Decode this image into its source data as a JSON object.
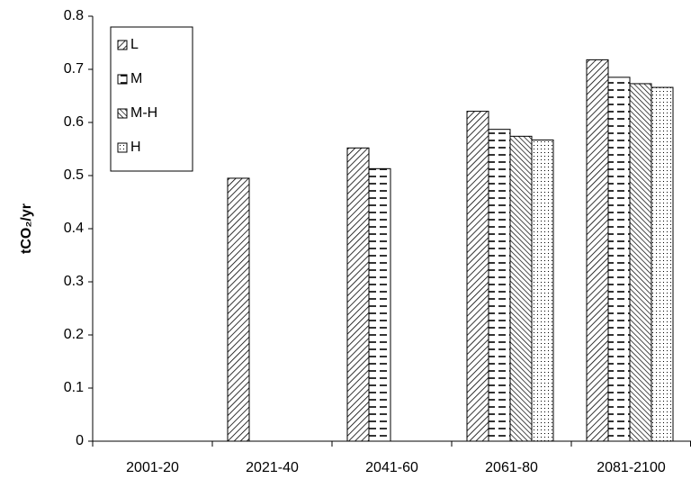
{
  "chart_data": {
    "type": "bar",
    "y_label": "tCO₂/yr",
    "categories": [
      "2001-20",
      "2021-40",
      "2041-60",
      "2061-80",
      "2081-2100"
    ],
    "series": [
      {
        "name": "L",
        "values": [
          null,
          0.495,
          0.552,
          0.621,
          0.718
        ]
      },
      {
        "name": "M",
        "values": [
          null,
          null,
          0.513,
          0.587,
          0.685
        ]
      },
      {
        "name": "M-H",
        "values": [
          null,
          null,
          null,
          0.574,
          0.673
        ]
      },
      {
        "name": "H",
        "values": [
          null,
          null,
          null,
          0.567,
          0.666
        ]
      }
    ],
    "ylim": [
      0,
      0.8
    ],
    "yticks": [
      0,
      0.1,
      0.2,
      0.3,
      0.4,
      0.5,
      0.6,
      0.7,
      0.8
    ],
    "grid": false,
    "legend": "upper left"
  }
}
